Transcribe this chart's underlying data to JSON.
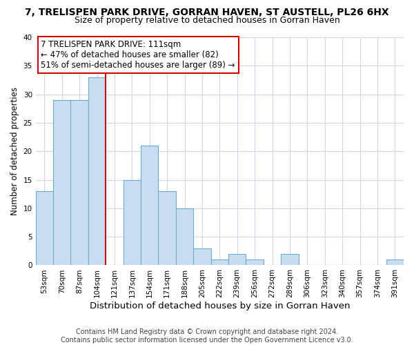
{
  "title": "7, TRELISPEN PARK DRIVE, GORRAN HAVEN, ST AUSTELL, PL26 6HX",
  "subtitle": "Size of property relative to detached houses in Gorran Haven",
  "xlabel": "Distribution of detached houses by size in Gorran Haven",
  "ylabel": "Number of detached properties",
  "bin_labels": [
    "53sqm",
    "70sqm",
    "87sqm",
    "104sqm",
    "121sqm",
    "137sqm",
    "154sqm",
    "171sqm",
    "188sqm",
    "205sqm",
    "222sqm",
    "239sqm",
    "256sqm",
    "272sqm",
    "289sqm",
    "306sqm",
    "323sqm",
    "340sqm",
    "357sqm",
    "374sqm",
    "391sqm"
  ],
  "bar_heights": [
    13,
    29,
    29,
    33,
    0,
    15,
    21,
    13,
    10,
    3,
    1,
    2,
    1,
    0,
    2,
    0,
    0,
    0,
    0,
    0,
    1
  ],
  "bar_color": "#c9ddf0",
  "bar_edge_color": "#6aaad4",
  "vline_x_index": 4,
  "vline_color": "#cc0000",
  "annotation_text": "7 TRELISPEN PARK DRIVE: 111sqm\n← 47% of detached houses are smaller (82)\n51% of semi-detached houses are larger (89) →",
  "annotation_box_color": "#ffffff",
  "annotation_box_edge_color": "#cc0000",
  "ylim": [
    0,
    40
  ],
  "yticks": [
    0,
    5,
    10,
    15,
    20,
    25,
    30,
    35,
    40
  ],
  "footer": "Contains HM Land Registry data © Crown copyright and database right 2024.\nContains public sector information licensed under the Open Government Licence v3.0.",
  "title_fontsize": 10,
  "subtitle_fontsize": 9,
  "xlabel_fontsize": 9.5,
  "ylabel_fontsize": 8.5,
  "tick_fontsize": 7.5,
  "annotation_fontsize": 8.5,
  "footer_fontsize": 7,
  "grid_color": "#d0d8e8",
  "background_color": "#ffffff",
  "footer_color": "#444444"
}
